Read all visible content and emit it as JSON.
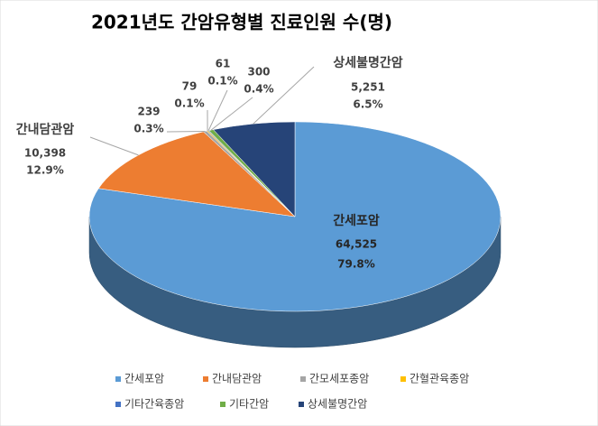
{
  "chart_data": {
    "type": "pie3d",
    "title": "2021년도 간암유형별 진료인원 수(명)",
    "categories": [
      "간세포암",
      "간내담관암",
      "간모세포종암",
      "간혈관육종암",
      "기타간육종암",
      "기타간암",
      "상세불명간암"
    ],
    "values": [
      64525,
      10398,
      239,
      79,
      61,
      300,
      5251
    ],
    "value_labels": [
      "64,525",
      "10,398",
      "239",
      "79",
      "61",
      "300",
      "5,251"
    ],
    "percents": [
      79.8,
      12.9,
      0.3,
      0.1,
      0.1,
      0.4,
      6.5
    ],
    "percent_labels": [
      "79.8%",
      "12.9%",
      "0.3%",
      "0.1%",
      "0.1%",
      "0.4%",
      "6.5%"
    ],
    "colors": [
      "#5b9bd5",
      "#ed7d31",
      "#a5a5a5",
      "#ffc000",
      "#4472c4",
      "#70ad47",
      "#264478"
    ],
    "legend": "bottom"
  }
}
